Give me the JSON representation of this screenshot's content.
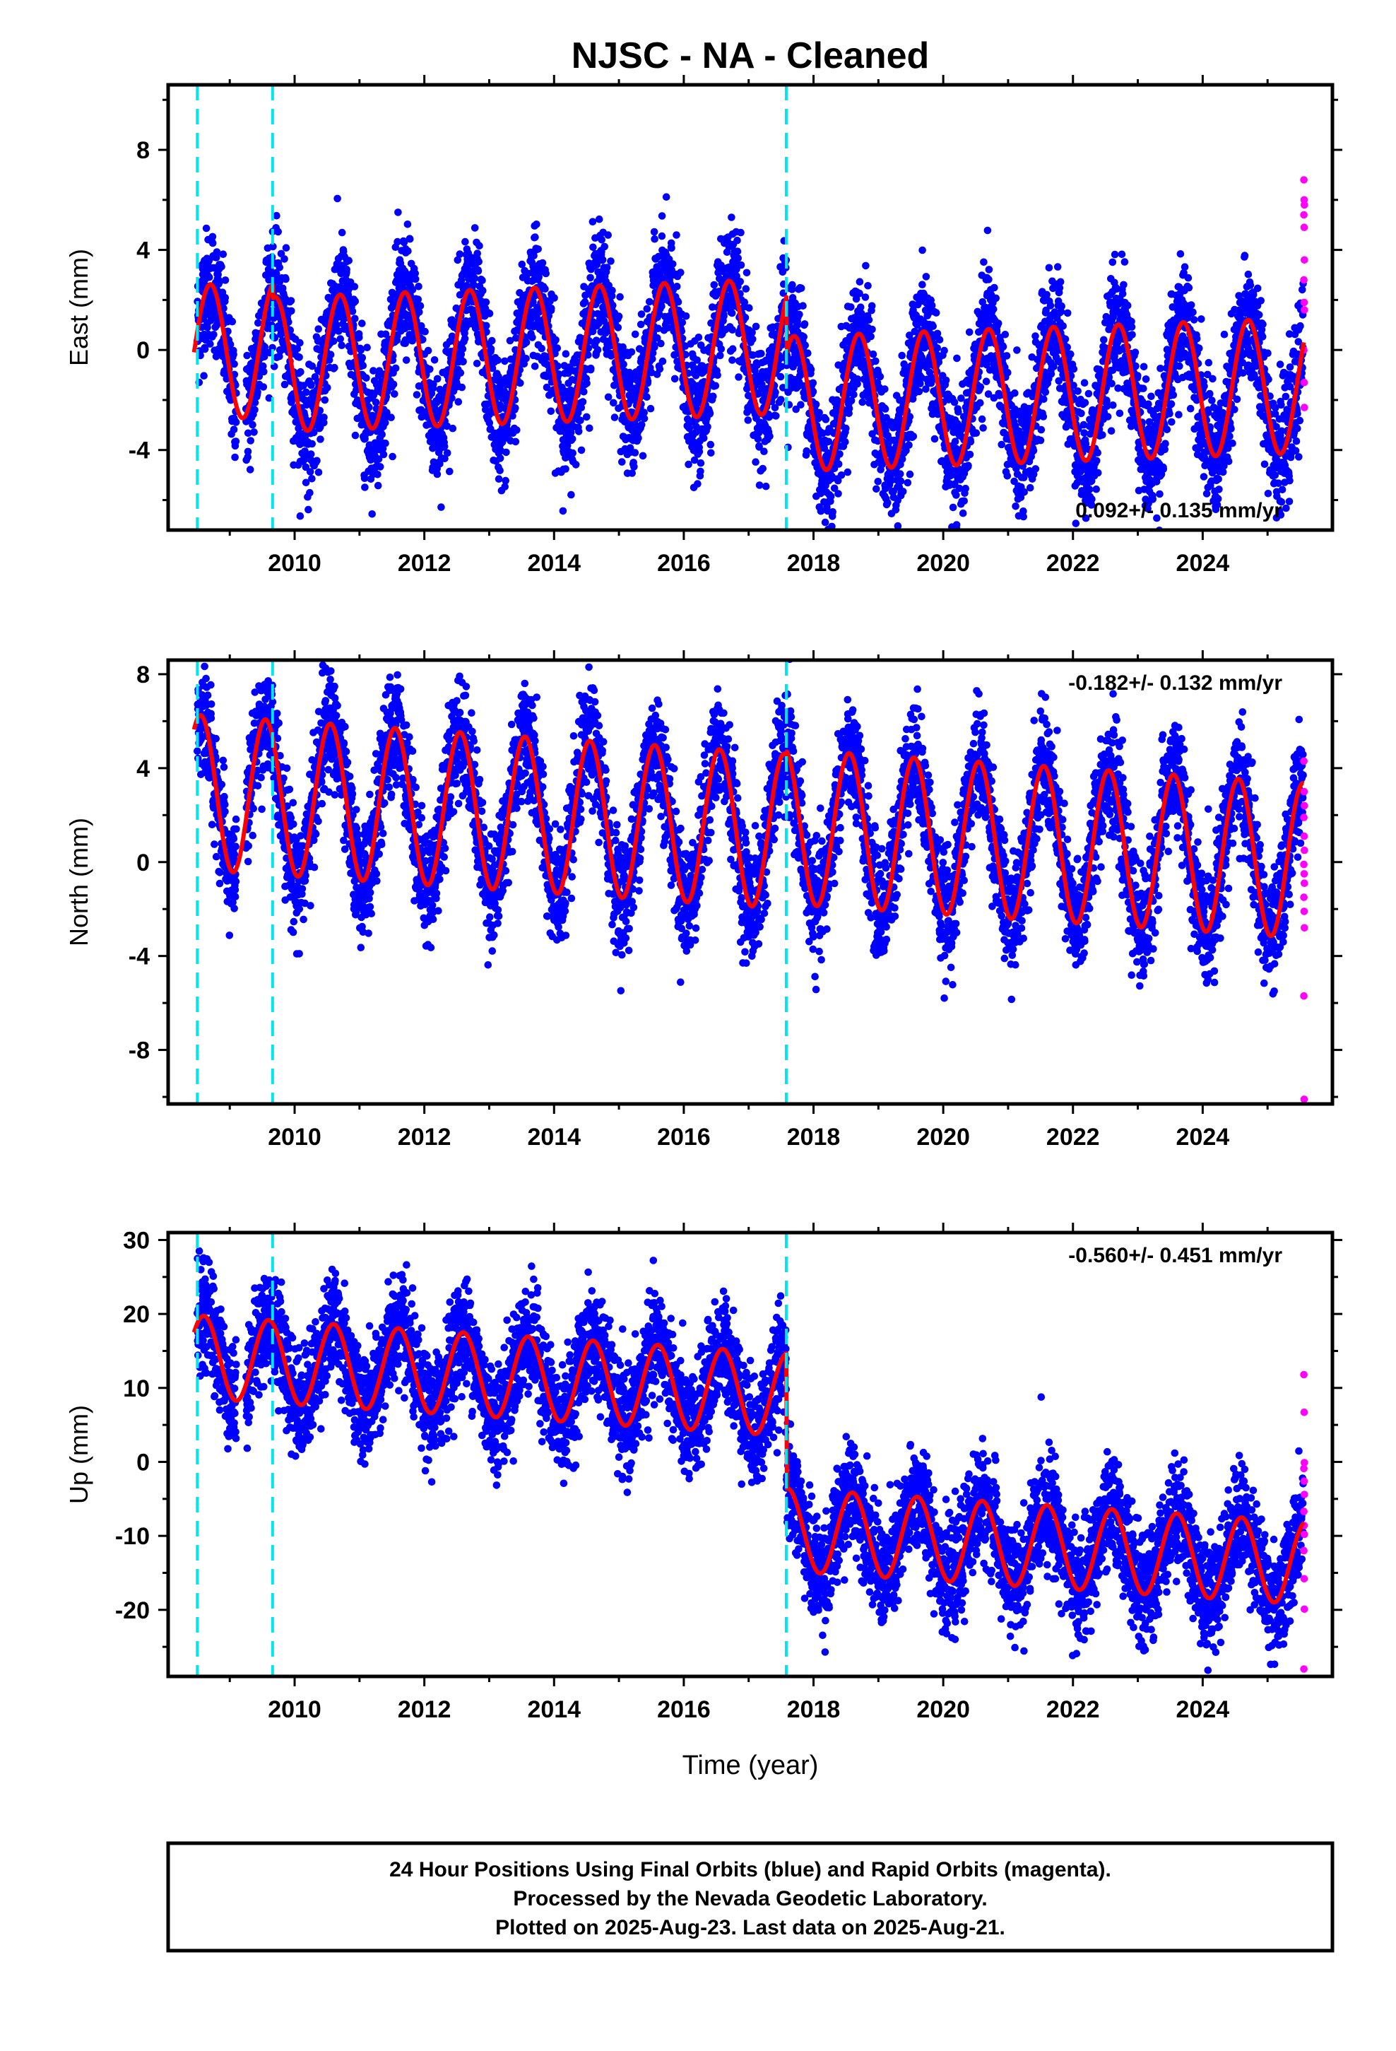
{
  "chart_data": {
    "type": "scatter",
    "title": "NJSC  - NA - Cleaned",
    "xlabel": "Time (year)",
    "x_ticks": [
      2010,
      2012,
      2014,
      2016,
      2018,
      2020,
      2022,
      2024
    ],
    "xlim": [
      2008.05,
      2026.0
    ],
    "step_lines_x": [
      2008.5,
      2009.66,
      2017.58
    ],
    "colors": {
      "final": "#0000ff",
      "rapid": "#ff00ff",
      "model": "#ff0000",
      "steps": "#00e5ee"
    },
    "panels": [
      {
        "ylabel": "East (mm)",
        "ylim": [
          -7.2,
          10.6
        ],
        "y_ticks": [
          -4,
          0,
          4,
          8
        ],
        "rate": "0.092+/- 0.135 mm/yr",
        "rate_position": "bottom-right",
        "model": {
          "offsets": [
            [
              2008.45,
              0.6
            ],
            [
              2009.66,
              0.0
            ],
            [
              2017.58,
              -2.3
            ]
          ],
          "annual_amp": 2.7,
          "phase_peak": 0.7,
          "trend": 0.092,
          "noise_sd": 1.2
        },
        "rapid_y": [
          6.8,
          6.0,
          5.8,
          5.4,
          4.9,
          3.6,
          2.8,
          1.9,
          1.6,
          0.0,
          -1.3,
          -2.3
        ]
      },
      {
        "ylabel": "North (mm)",
        "ylim": [
          -10.3,
          8.6
        ],
        "y_ticks": [
          -8,
          -4,
          0,
          4,
          8
        ],
        "rate": "-0.182+/- 0.132 mm/yr",
        "rate_position": "top-right",
        "model": {
          "offsets": [
            [
              2008.45,
              1.6
            ],
            [
              2009.66,
              1.6
            ],
            [
              2017.58,
              1.8
            ]
          ],
          "annual_amp": 3.3,
          "phase_peak": 0.55,
          "trend": -0.182,
          "noise_sd": 1.2
        },
        "rapid_y": [
          4.3,
          3.0,
          2.4,
          1.9,
          1.1,
          0.5,
          -0.1,
          -0.5,
          -0.9,
          -1.5,
          -2.1,
          -2.8,
          -5.7,
          -10.1
        ]
      },
      {
        "ylabel": "Up (mm)",
        "ylim": [
          -29.0,
          31.0
        ],
        "y_ticks": [
          -20,
          -10,
          0,
          10,
          20,
          30
        ],
        "rate": "-0.560+/- 0.451 mm/yr",
        "rate_position": "top-right",
        "model": {
          "offsets": [
            [
              2008.45,
              10.0
            ],
            [
              2009.66,
              10.0
            ],
            [
              2017.58,
              -8.3
            ]
          ],
          "annual_amp": 5.6,
          "phase_peak": 0.6,
          "trend": -0.56,
          "noise_sd": 3.6
        },
        "rapid_y": [
          11.8,
          6.7,
          -0.1,
          -0.9,
          -2.6,
          -4.4,
          -6.7,
          -8.6,
          -9.8,
          -12.0,
          -15.8,
          -19.9,
          -28.0
        ]
      }
    ]
  },
  "footer": {
    "line1": "24 Hour Positions Using Final Orbits (blue) and Rapid Orbits (magenta).",
    "line2": "Processed by the Nevada Geodetic Laboratory.",
    "line3": "Plotted on 2025-Aug-23. Last data on 2025-Aug-21."
  }
}
